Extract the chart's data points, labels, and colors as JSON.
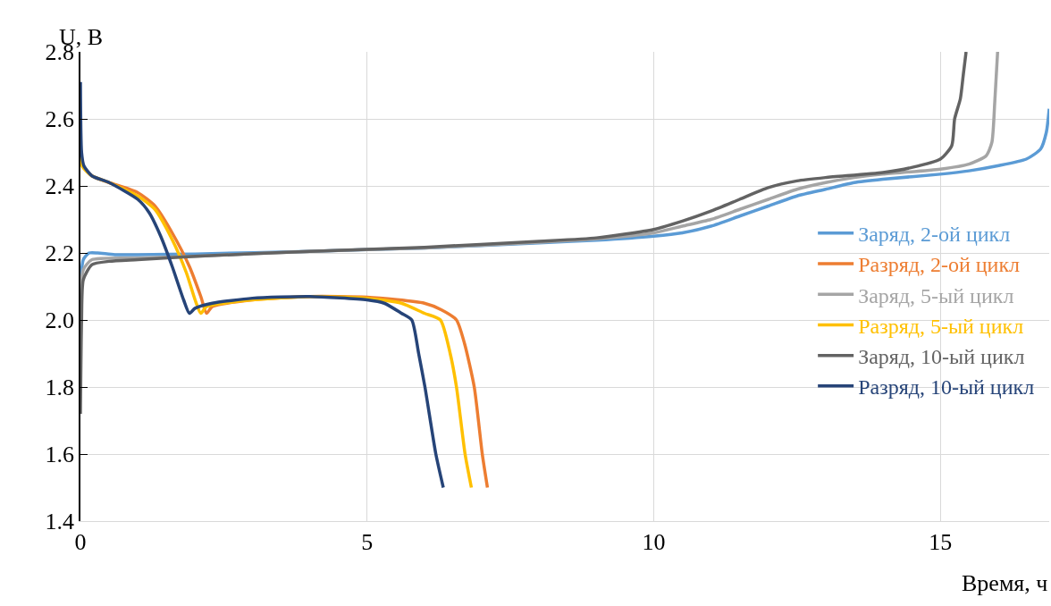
{
  "chart_data": {
    "type": "line",
    "xlabel": "Время, ч",
    "ylabel": "U, B",
    "xlim": [
      0,
      16.9
    ],
    "ylim": [
      1.4,
      2.8
    ],
    "xticks": [
      0,
      5,
      10,
      15
    ],
    "yticks": [
      1.4,
      1.6,
      1.8,
      {
        "value": 2.0,
        "label": "2.0"
      },
      2.2,
      2.4,
      2.6,
      2.8
    ],
    "grid": true,
    "legend": "right",
    "line_style": "solid",
    "marker": "none",
    "series": [
      {
        "name": "Заряд, 2-ой цикл",
        "color": "#5b9bd5",
        "x": [
          0,
          0.05,
          0.15,
          0.3,
          0.6,
          1,
          2,
          4,
          6,
          8,
          9,
          10,
          10.5,
          11,
          11.5,
          12,
          12.5,
          13,
          13.5,
          14,
          15,
          15.5,
          16,
          16.5,
          16.75,
          16.85,
          16.9
        ],
        "values": [
          2.1,
          2.18,
          2.2,
          2.2,
          2.195,
          2.195,
          2.197,
          2.205,
          2.215,
          2.23,
          2.238,
          2.25,
          2.26,
          2.28,
          2.31,
          2.34,
          2.37,
          2.39,
          2.41,
          2.42,
          2.435,
          2.445,
          2.46,
          2.48,
          2.51,
          2.56,
          2.63
        ]
      },
      {
        "name": "Разряд, 2-ой цикл",
        "color": "#ed7d31",
        "x": [
          0.03,
          0.2,
          0.5,
          1,
          1.3,
          1.6,
          1.9,
          2.1,
          2.2,
          2.3,
          3,
          4,
          5,
          6,
          6.3,
          6.56,
          6.7,
          6.87,
          7.01,
          7.1
        ],
        "values": [
          2.46,
          2.43,
          2.41,
          2.38,
          2.34,
          2.26,
          2.16,
          2.07,
          2.02,
          2.04,
          2.06,
          2.07,
          2.068,
          2.05,
          2.03,
          2.0,
          1.93,
          1.8,
          1.6,
          1.5
        ]
      },
      {
        "name": "Заряд, 5-ый цикл",
        "color": "#a5a5a5",
        "x": [
          0,
          0.05,
          0.2,
          1,
          2,
          4,
          6,
          8,
          9,
          10,
          10.5,
          11,
          11.5,
          12,
          12.5,
          13,
          13.5,
          14,
          15,
          15.5,
          15.8,
          15.9,
          15.95,
          16.0
        ],
        "values": [
          2.05,
          2.15,
          2.18,
          2.185,
          2.19,
          2.205,
          2.215,
          2.232,
          2.242,
          2.26,
          2.28,
          2.3,
          2.33,
          2.36,
          2.39,
          2.41,
          2.425,
          2.435,
          2.45,
          2.465,
          2.49,
          2.53,
          2.65,
          2.8
        ]
      },
      {
        "name": "Разряд, 5-ый цикл",
        "color": "#ffc000",
        "x": [
          0,
          0.03,
          0.2,
          0.5,
          1,
          1.3,
          1.6,
          1.85,
          2.0,
          2.1,
          2.2,
          3,
          4,
          5,
          5.6,
          6.0,
          6.28,
          6.45,
          6.56,
          6.71,
          6.82
        ],
        "values": [
          2.6,
          2.46,
          2.43,
          2.41,
          2.37,
          2.33,
          2.24,
          2.14,
          2.06,
          2.02,
          2.04,
          2.06,
          2.07,
          2.065,
          2.05,
          2.02,
          2.0,
          1.9,
          1.8,
          1.6,
          1.5
        ]
      },
      {
        "name": "Заряд, 10-ый цикл",
        "color": "#636363",
        "x": [
          0,
          0.02,
          0.05,
          0.2,
          0.5,
          1,
          2,
          4,
          6,
          8,
          9,
          10,
          10.5,
          11,
          11.5,
          12,
          12.5,
          13,
          14,
          14.5,
          15,
          15.2,
          15.25,
          15.35,
          15.4,
          15.45
        ],
        "values": [
          1.72,
          2.0,
          2.12,
          2.165,
          2.175,
          2.18,
          2.19,
          2.205,
          2.217,
          2.235,
          2.245,
          2.27,
          2.295,
          2.325,
          2.36,
          2.395,
          2.415,
          2.425,
          2.44,
          2.455,
          2.48,
          2.52,
          2.6,
          2.66,
          2.73,
          2.8
        ]
      },
      {
        "name": "Разряд, 10-ый цикл",
        "color": "#264478",
        "x": [
          0,
          0.02,
          0.06,
          0.2,
          0.5,
          1,
          1.2,
          1.4,
          1.6,
          1.8,
          1.9,
          2.0,
          2.3,
          3,
          4,
          5,
          5.3,
          5.6,
          5.78,
          5.9,
          6.01,
          6.2,
          6.33
        ],
        "values": [
          2.71,
          2.5,
          2.46,
          2.43,
          2.41,
          2.36,
          2.32,
          2.25,
          2.16,
          2.06,
          2.02,
          2.035,
          2.05,
          2.065,
          2.07,
          2.06,
          2.05,
          2.02,
          2.0,
          1.9,
          1.8,
          1.6,
          1.5
        ]
      }
    ]
  }
}
